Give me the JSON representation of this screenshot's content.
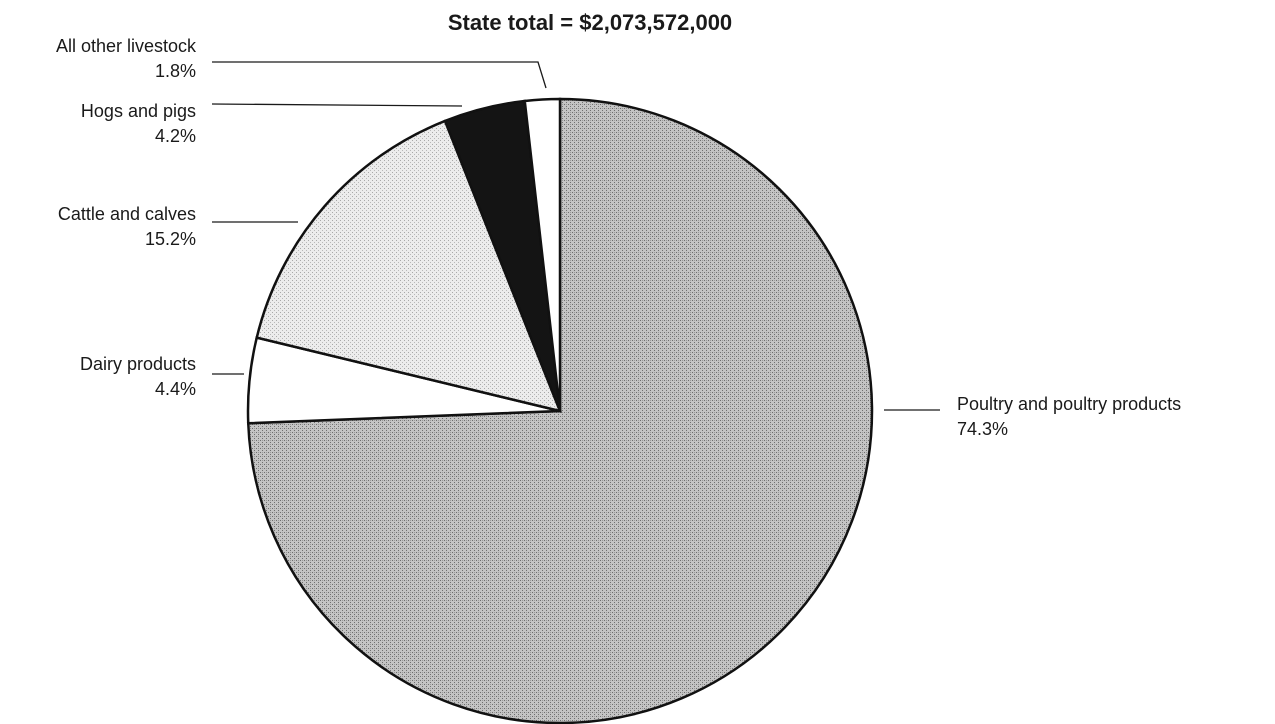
{
  "chart_data": {
    "type": "pie",
    "title": "State total = $2,073,572,000",
    "slices": [
      {
        "label": "Poultry and poultry products",
        "value_label": "74.3%",
        "value": 74.3,
        "fill": "stipple-gray",
        "color": "#b9b9b9"
      },
      {
        "label": "Dairy products",
        "value_label": "4.4%",
        "value": 4.4,
        "fill": "white",
        "color": "#ffffff"
      },
      {
        "label": "Cattle and calves",
        "value_label": "15.2%",
        "value": 15.2,
        "fill": "stipple-light",
        "color": "#e6e6e6"
      },
      {
        "label": "Hogs and pigs",
        "value_label": "4.2%",
        "value": 4.2,
        "fill": "black",
        "color": "#141414"
      },
      {
        "label": "All other livestock",
        "value_label": "1.8%",
        "value": 1.8,
        "fill": "white",
        "color": "#ffffff"
      }
    ],
    "start": "12 o'clock",
    "direction": "clockwise",
    "legend": "none (direct labels with leader lines)"
  }
}
